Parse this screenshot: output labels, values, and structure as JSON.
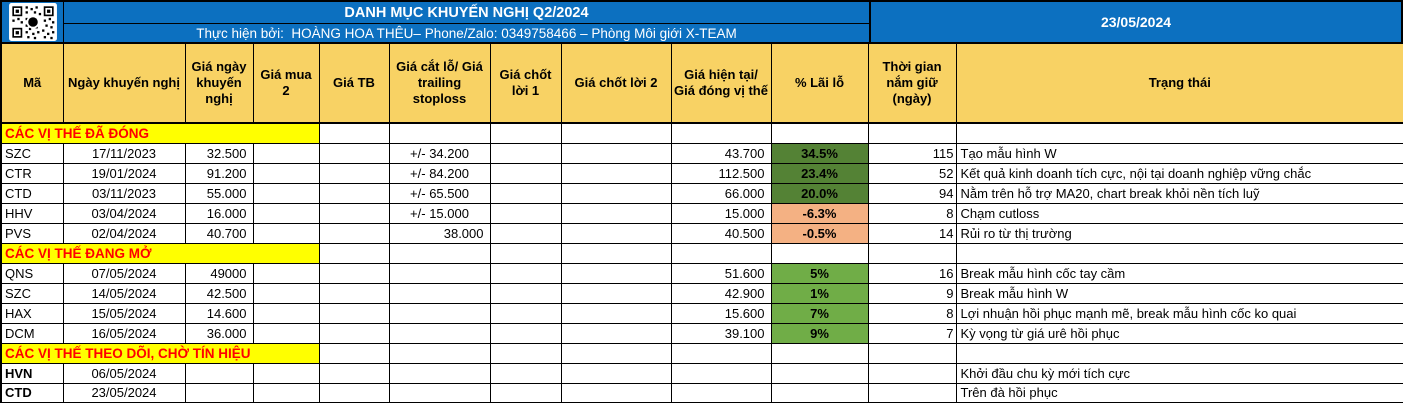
{
  "header": {
    "title": "DANH MỤC KHUYẾN NGHỊ Q2/2024",
    "subtitle": "Thực hiện bởi:  HOÀNG HOA THÊU– Phone/Zalo: 0349758466 – Phòng Môi giới X-TEAM",
    "report_date": "23/05/2024",
    "qr_icon": "qr-code"
  },
  "colors": {
    "blue": "#0C70C0",
    "tan": "#F8D264",
    "yellow": "#FFFF00",
    "red": "#FF0000",
    "win_closed": "#548235",
    "win_open": "#70AD47",
    "loss": "#F4B183"
  },
  "columns": [
    "Mã",
    "Ngày khuyến nghị",
    "Giá ngày khuyến nghị",
    "Giá mua 2",
    "Giá TB",
    "Giá cắt lỗ/ Giá trailing stoploss",
    "Giá chốt lời 1",
    "Giá chốt lời 2",
    "Giá hiện tại/ Giá đóng vị thế",
    "% Lãi lỗ",
    "Thời gian nắm giữ (ngày)",
    "Trạng thái"
  ],
  "sections": [
    {
      "label": "CÁC VỊ THẾ ĐÃ ĐÓNG",
      "bold_tickers": false,
      "rows": [
        {
          "ticker": "SZC",
          "date": "17/11/2023",
          "entry_price": "32.500",
          "buy2": "",
          "avg_price": "",
          "stoploss": "+/- 34.200",
          "take_profit_1": "",
          "take_profit_2": "",
          "current_price": "43.700",
          "pnl_pct": "34.5%",
          "pnl_style": "win_closed",
          "days_held": "115",
          "status": "Tạo mẫu hình W"
        },
        {
          "ticker": "CTR",
          "date": "19/01/2024",
          "entry_price": "91.200",
          "buy2": "",
          "avg_price": "",
          "stoploss": "+/- 84.200",
          "take_profit_1": "",
          "take_profit_2": "",
          "current_price": "112.500",
          "pnl_pct": "23.4%",
          "pnl_style": "win_closed",
          "days_held": "52",
          "status": "Kết quả kinh doanh tích cực, nội tại doanh nghiệp vững chắc"
        },
        {
          "ticker": "CTD",
          "date": "03/11/2023",
          "entry_price": "55.000",
          "buy2": "",
          "avg_price": "",
          "stoploss": "+/- 65.500",
          "take_profit_1": "",
          "take_profit_2": "",
          "current_price": "66.000",
          "pnl_pct": "20.0%",
          "pnl_style": "win_closed",
          "days_held": "94",
          "status": "Nằm trên hỗ trợ MA20, chart break khỏi nền tích luỹ"
        },
        {
          "ticker": "HHV",
          "date": "03/04/2024",
          "entry_price": "16.000",
          "buy2": "",
          "avg_price": "",
          "stoploss": "+/- 15.000",
          "take_profit_1": "",
          "take_profit_2": "",
          "current_price": "15.000",
          "pnl_pct": "-6.3%",
          "pnl_style": "loss",
          "days_held": "8",
          "status": "Chạm cutloss"
        },
        {
          "ticker": "PVS",
          "date": "02/04/2024",
          "entry_price": "40.700",
          "buy2": "",
          "avg_price": "",
          "stoploss": "38.000",
          "take_profit_1": "",
          "take_profit_2": "",
          "current_price": "40.500",
          "pnl_pct": "-0.5%",
          "pnl_style": "loss",
          "days_held": "14",
          "status": "Rủi ro từ thị trường"
        }
      ]
    },
    {
      "label": "CÁC VỊ THẾ ĐANG MỞ",
      "bold_tickers": false,
      "rows": [
        {
          "ticker": "QNS",
          "date": "07/05/2024",
          "entry_price": "49000",
          "buy2": "",
          "avg_price": "",
          "stoploss": "",
          "take_profit_1": "",
          "take_profit_2": "",
          "current_price": "51.600",
          "pnl_pct": "5%",
          "pnl_style": "win_open",
          "days_held": "16",
          "status": "Break mẫu hình cốc tay cầm"
        },
        {
          "ticker": "SZC",
          "date": "14/05/2024",
          "entry_price": "42.500",
          "buy2": "",
          "avg_price": "",
          "stoploss": "",
          "take_profit_1": "",
          "take_profit_2": "",
          "current_price": "42.900",
          "pnl_pct": "1%",
          "pnl_style": "win_open",
          "days_held": "9",
          "status": "Break mẫu hình W"
        },
        {
          "ticker": "HAX",
          "date": "15/05/2024",
          "entry_price": "14.600",
          "buy2": "",
          "avg_price": "",
          "stoploss": "",
          "take_profit_1": "",
          "take_profit_2": "",
          "current_price": "15.600",
          "pnl_pct": "7%",
          "pnl_style": "win_open",
          "days_held": "8",
          "status": "Lợi nhuận hồi phục mạnh mẽ, break mẫu hình cốc ko quai"
        },
        {
          "ticker": "DCM",
          "date": "16/05/2024",
          "entry_price": "36.000",
          "buy2": "",
          "avg_price": "",
          "stoploss": "",
          "take_profit_1": "",
          "take_profit_2": "",
          "current_price": "39.100",
          "pnl_pct": "9%",
          "pnl_style": "win_open",
          "days_held": "7",
          "status": "Kỳ vọng từ giá urê hồi phục"
        }
      ]
    },
    {
      "label": "CÁC VỊ THẾ THEO DÕI, CHỜ TÍN HIỆU",
      "bold_tickers": true,
      "rows": [
        {
          "ticker": "HVN",
          "date": "06/05/2024",
          "entry_price": "",
          "buy2": "",
          "avg_price": "",
          "stoploss": "",
          "take_profit_1": "",
          "take_profit_2": "",
          "current_price": "",
          "pnl_pct": "",
          "pnl_style": "",
          "days_held": "",
          "status": "Khởi đầu chu kỳ mới tích cực"
        },
        {
          "ticker": "CTD",
          "date": "23/05/2024",
          "entry_price": "",
          "buy2": "",
          "avg_price": "",
          "stoploss": "",
          "take_profit_1": "",
          "take_profit_2": "",
          "current_price": "",
          "pnl_pct": "",
          "pnl_style": "",
          "days_held": "",
          "status": "Trên đà hồi phục"
        }
      ]
    }
  ]
}
